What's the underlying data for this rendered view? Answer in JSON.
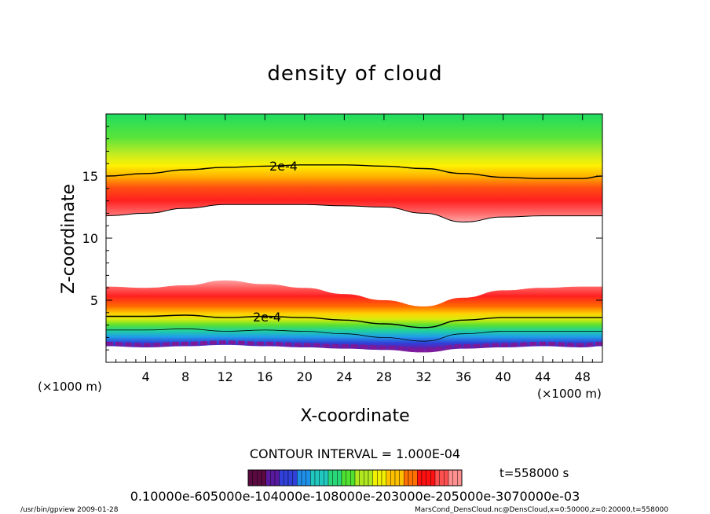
{
  "chart_data": {
    "type": "heatmap",
    "title": "density of cloud",
    "xlabel": "X-coordinate",
    "ylabel": "Z-coordinate",
    "x_unit_left": "(×1000 m)",
    "x_unit_right": "(×1000 m)",
    "xlim": [
      0,
      50
    ],
    "ylim": [
      0,
      20
    ],
    "x_ticks": [
      "4",
      "8",
      "12",
      "16",
      "20",
      "24",
      "28",
      "32",
      "36",
      "40",
      "44",
      "48"
    ],
    "x_tick_values": [
      4,
      8,
      12,
      16,
      20,
      24,
      28,
      32,
      36,
      40,
      44,
      48
    ],
    "y_ticks": [
      "5",
      "10",
      "15"
    ],
    "y_tick_values": [
      5,
      10,
      15
    ],
    "contour_label": "2e-4",
    "contour_interval": "CONTOUR INTERVAL = 1.000E-04",
    "time_label": "t=558000 s",
    "colorbar_tick_text": "0.10000e-605000e-104000e-108000e-203000e-205000e-3070000e-03",
    "upper_layer": {
      "x": [
        0,
        4,
        8,
        12,
        16,
        20,
        24,
        28,
        32,
        36,
        40,
        44,
        48,
        50
      ],
      "base": [
        11.8,
        12.0,
        12.4,
        12.7,
        12.7,
        12.7,
        12.6,
        12.5,
        12.0,
        11.3,
        11.7,
        11.8,
        11.8,
        11.8
      ],
      "contour_2e4": [
        15.0,
        15.2,
        15.5,
        15.7,
        15.8,
        15.9,
        15.9,
        15.8,
        15.6,
        15.2,
        14.9,
        14.8,
        14.8,
        15.0
      ]
    },
    "lower_layer": {
      "x": [
        0,
        4,
        8,
        12,
        16,
        20,
        24,
        28,
        32,
        36,
        40,
        44,
        48,
        50
      ],
      "top": [
        6.1,
        6.0,
        6.2,
        6.6,
        6.3,
        6.0,
        5.5,
        5.0,
        4.5,
        5.2,
        5.8,
        6.0,
        6.1,
        6.1
      ],
      "contour_2e4": [
        3.7,
        3.7,
        3.8,
        3.6,
        3.7,
        3.6,
        3.4,
        3.1,
        2.8,
        3.4,
        3.6,
        3.6,
        3.6,
        3.6
      ],
      "bottom": [
        1.3,
        1.2,
        1.3,
        1.4,
        1.3,
        1.2,
        1.1,
        1.0,
        0.8,
        1.1,
        1.2,
        1.3,
        1.2,
        1.3
      ]
    },
    "colormap": [
      "#5a0a40",
      "#5a1aa0",
      "#3040d8",
      "#1f90e8",
      "#20c8c0",
      "#28d878",
      "#50e030",
      "#b0e820",
      "#f0f000",
      "#ffc000",
      "#ff7000",
      "#ff1010",
      "#ff5050",
      "#ff9090"
    ],
    "grid": false
  },
  "footer": {
    "left": "/usr/bin/gpview   2009-01-28",
    "right": "MarsCond_DensCloud.nc@DensCloud,x=0:50000,z=0:20000,t=558000"
  }
}
